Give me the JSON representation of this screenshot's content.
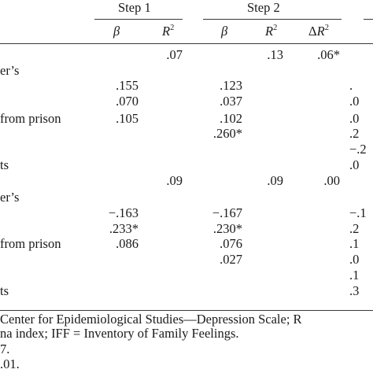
{
  "table": {
    "headers": {
      "step1": "Step 1",
      "step2": "Step 2",
      "beta": "β",
      "r2_base": "R",
      "r2_sup": "2",
      "delta": "Δ",
      "delta_r2_base": "R",
      "delta_r2_sup": "2"
    },
    "rows": [
      {
        "label": "",
        "s1_beta": "",
        "s1_r2": ".07",
        "s2_beta": "",
        "s2_r2": ".13",
        "s2_dr2": ".06*",
        "s3": ""
      },
      {
        "label": "er’s",
        "s1_beta": "",
        "s1_r2": "",
        "s2_beta": "",
        "s2_r2": "",
        "s2_dr2": "",
        "s3": ""
      },
      {
        "label": "",
        "s1_beta": ".155",
        "s1_r2": "",
        "s2_beta": ".123",
        "s2_r2": "",
        "s2_dr2": "",
        "s3": "."
      },
      {
        "label": "",
        "s1_beta": ".070",
        "s1_r2": "",
        "s2_beta": ".037",
        "s2_r2": "",
        "s2_dr2": "",
        "s3": ".0"
      },
      {
        "label": "from prison",
        "s1_beta": ".105",
        "s1_r2": "",
        "s2_beta": ".102",
        "s2_r2": "",
        "s2_dr2": "",
        "s3": ".0"
      },
      {
        "label": "",
        "s1_beta": "",
        "s1_r2": "",
        "s2_beta": ".260*",
        "s2_r2": "",
        "s2_dr2": "",
        "s3": ".2"
      },
      {
        "label": "",
        "s1_beta": "",
        "s1_r2": "",
        "s2_beta": "",
        "s2_r2": "",
        "s2_dr2": "",
        "s3": "−.2"
      },
      {
        "label": "ts",
        "s1_beta": "",
        "s1_r2": "",
        "s2_beta": "",
        "s2_r2": "",
        "s2_dr2": "",
        "s3": ".0"
      },
      {
        "label": "",
        "s1_beta": "",
        "s1_r2": ".09",
        "s2_beta": "",
        "s2_r2": ".09",
        "s2_dr2": ".00",
        "s3": ""
      },
      {
        "label": "er’s",
        "s1_beta": "",
        "s1_r2": "",
        "s2_beta": "",
        "s2_r2": "",
        "s2_dr2": "",
        "s3": ""
      },
      {
        "label": "",
        "s1_beta": "−.163",
        "s1_r2": "",
        "s2_beta": "−.167",
        "s2_r2": "",
        "s2_dr2": "",
        "s3": "−.1"
      },
      {
        "label": "",
        "s1_beta": ".233*",
        "s1_r2": "",
        "s2_beta": ".230*",
        "s2_r2": "",
        "s2_dr2": "",
        "s3": ".2"
      },
      {
        "label": "from prison",
        "s1_beta": ".086",
        "s1_r2": "",
        "s2_beta": ".076",
        "s2_r2": "",
        "s2_dr2": "",
        "s3": ".1"
      },
      {
        "label": "",
        "s1_beta": "",
        "s1_r2": "",
        "s2_beta": ".027",
        "s2_r2": "",
        "s2_dr2": "",
        "s3": ".0"
      },
      {
        "label": "",
        "s1_beta": "",
        "s1_r2": "",
        "s2_beta": "",
        "s2_r2": "",
        "s2_dr2": "",
        "s3": ".1"
      },
      {
        "label": "ts",
        "s1_beta": "",
        "s1_r2": "",
        "s2_beta": "",
        "s2_r2": "",
        "s2_dr2": "",
        "s3": ".3"
      }
    ]
  },
  "notes": {
    "line1": "Center for Epidemiological Studies—Depression Scale; R",
    "line2": "na index; IFF = Inventory of Family Feelings.",
    "line3": "7.",
    "line4": ".01."
  }
}
